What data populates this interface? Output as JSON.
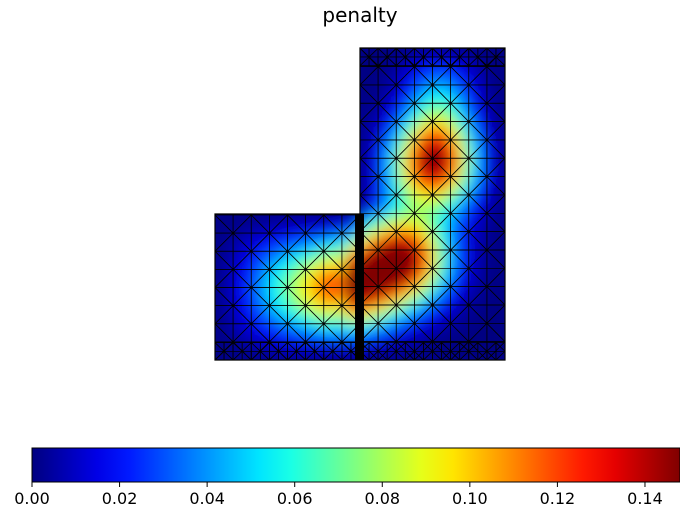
{
  "chart_data": {
    "type": "heatmap",
    "title": "penalty",
    "colormap": "jet",
    "colorbar": {
      "orientation": "horizontal",
      "placement": "bottom",
      "range": [
        0.0,
        0.148
      ],
      "ticks": [
        "0.00",
        "0.02",
        "0.04",
        "0.06",
        "0.08",
        "0.10",
        "0.12",
        "0.14"
      ],
      "tick_values": [
        0.0,
        0.02,
        0.04,
        0.06,
        0.08,
        0.1,
        0.12,
        0.14
      ]
    },
    "domain": {
      "shape": "L-shape",
      "regions": [
        {
          "x": [
            0.0,
            1.0
          ],
          "y": [
            0.0,
            1.0
          ]
        },
        {
          "x": [
            1.0,
            2.0
          ],
          "y": [
            0.0,
            2.15
          ]
        }
      ]
    },
    "mesh": "triangular",
    "peaks": [
      {
        "x": 1.3,
        "y": 0.7,
        "value": 0.145
      },
      {
        "x": 0.95,
        "y": 0.5,
        "value": 0.12
      },
      {
        "x": 1.5,
        "y": 1.35,
        "value": 0.125
      }
    ]
  }
}
